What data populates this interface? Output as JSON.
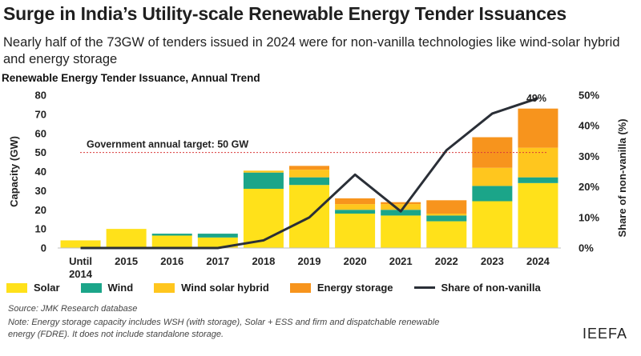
{
  "header": {
    "title": "Surge in India’s Utility-scale Renewable Energy Tender Issuances",
    "subtitle": "Nearly half of the 73GW of tenders issued in 2024 were for non-vanilla technologies like wind-solar hybrid and energy storage"
  },
  "chart_data": {
    "type": "bar",
    "stacked": true,
    "title": "Renewable Energy Tender Issuance, Annual Trend",
    "ylabel": "Capacity (GW)",
    "y2label": "Share of non-vanilla (%)",
    "ylim": [
      0,
      80
    ],
    "y2lim": [
      0,
      50
    ],
    "yticks": [
      "0",
      "10",
      "20",
      "30",
      "40",
      "50",
      "60",
      "70",
      "80"
    ],
    "y2ticks": [
      "0%",
      "10%",
      "20%",
      "30%",
      "40%",
      "50%"
    ],
    "categories": [
      "Until 2014",
      "2015",
      "2016",
      "2017",
      "2018",
      "2019",
      "2020",
      "2021",
      "2022",
      "2023",
      "2024"
    ],
    "series": [
      {
        "name": "Solar",
        "color": "#FFE11A",
        "values": [
          4,
          10,
          6.5,
          5.5,
          31,
          33,
          18,
          17,
          14,
          24.5,
          34
        ]
      },
      {
        "name": "Wind",
        "color": "#1BA589",
        "values": [
          0,
          0,
          1,
          2,
          8.5,
          4,
          2,
          3,
          3,
          8,
          3
        ]
      },
      {
        "name": "Wind solar hybrid",
        "color": "#FFC61E",
        "values": [
          0,
          0,
          0,
          0,
          1,
          4,
          3,
          3,
          1,
          9.5,
          15.5
        ]
      },
      {
        "name": "Energy storage",
        "color": "#F7941D",
        "values": [
          0,
          0,
          0,
          0,
          0,
          2,
          3,
          1,
          7,
          16,
          20.5
        ]
      }
    ],
    "line": {
      "name": "Share of non-vanilla",
      "color": "#2A2F37",
      "values": [
        0,
        0,
        0,
        0,
        2.5,
        10,
        24,
        12,
        32,
        44,
        49
      ]
    },
    "target": {
      "label": "Government annual target: 50 GW",
      "value": 50,
      "color": "#D93A3A"
    },
    "annotation": {
      "label": "49%",
      "category": "2024"
    }
  },
  "footer": {
    "source": "Source: JMK Research database",
    "note": "Note: Energy storage capacity includes WSH (with storage), Solar + ESS and firm and dispatchable renewable energy (FDRE). It does not include standalone storage.",
    "brand": "IEEFA"
  }
}
